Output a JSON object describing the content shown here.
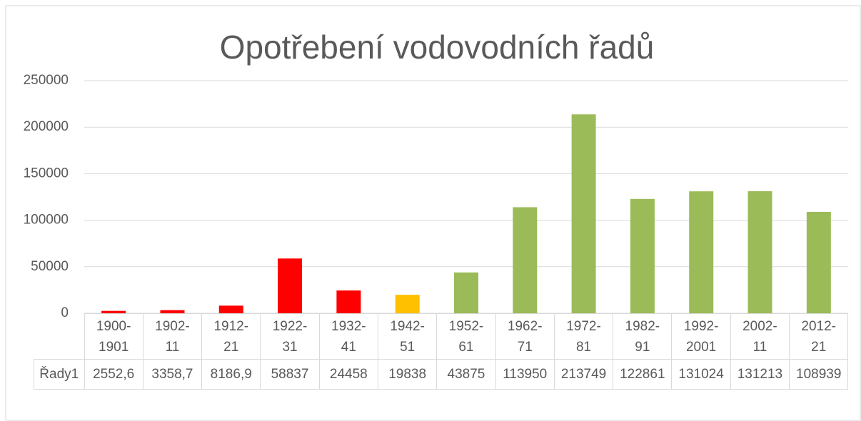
{
  "chart_data": {
    "type": "bar",
    "title": "Opotřebení vodovodních řadů",
    "categories": [
      "1900-1901",
      "1902-11",
      "1912-21",
      "1922-31",
      "1932-41",
      "1942-51",
      "1952-61",
      "1962-71",
      "1972-81",
      "1982-91",
      "1992-2001",
      "2002-11",
      "2012-21"
    ],
    "series": [
      {
        "name": "Řady1",
        "colors": [
          "#ff0000",
          "#ff0000",
          "#ff0000",
          "#ff0000",
          "#ff0000",
          "#ffc000",
          "#9bbb59",
          "#9bbb59",
          "#9bbb59",
          "#9bbb59",
          "#9bbb59",
          "#9bbb59",
          "#9bbb59"
        ],
        "values": [
          2552.6,
          3358.7,
          8186.9,
          58837,
          24458,
          19838,
          43875,
          113950,
          213749,
          122861,
          131024,
          131213,
          108939
        ],
        "value_labels": [
          "2552,6",
          "3358,7",
          "8186,9",
          "58837",
          "24458",
          "19838",
          "43875",
          "113950",
          "213749",
          "122861",
          "131024",
          "131213",
          "108939"
        ]
      }
    ],
    "ylim": [
      0,
      250000
    ],
    "yticks": [
      0,
      50000,
      100000,
      150000,
      200000,
      250000
    ],
    "grid": true
  }
}
